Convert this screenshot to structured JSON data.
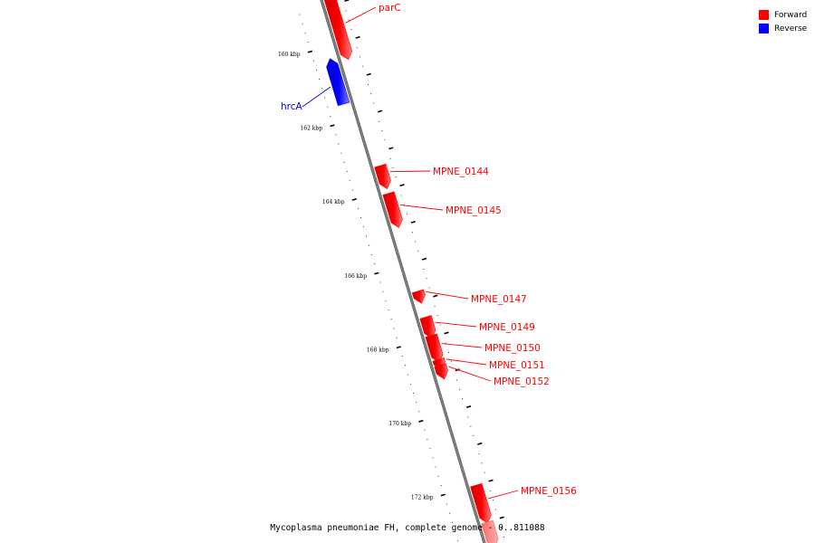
{
  "legend": {
    "forward_label": "Forward",
    "reverse_label": "Reverse",
    "forward_color": "#ff0000",
    "reverse_color": "#0000ff"
  },
  "caption": "Mycoplasma pneumoniae FH, complete genome - 0..811088",
  "map": {
    "backbone_color": "#808080",
    "range_kbp": [
      158.8,
      173.5
    ],
    "ticks": [
      {
        "kbp": 160,
        "label": "160 kbp"
      },
      {
        "kbp": 162,
        "label": "162 kbp"
      },
      {
        "kbp": 164,
        "label": "164 kbp"
      },
      {
        "kbp": 166,
        "label": "166 kbp"
      },
      {
        "kbp": 168,
        "label": "168 kbp"
      },
      {
        "kbp": 170,
        "label": "170 kbp"
      },
      {
        "kbp": 172,
        "label": "172 kbp"
      }
    ],
    "genes": [
      {
        "name": "parC",
        "strand": "forward",
        "start_kbp": 158.8,
        "end_kbp": 160.3
      },
      {
        "name": "hrcA",
        "strand": "reverse",
        "start_kbp": 160.5,
        "end_kbp": 161.55
      },
      {
        "name": "MPNE_0144",
        "strand": "forward",
        "start_kbp": 163.35,
        "end_kbp": 163.8
      },
      {
        "name": "MPNE_0145",
        "strand": "forward",
        "start_kbp": 164.1,
        "end_kbp": 164.85
      },
      {
        "name": "MPNE_0147",
        "strand": "forward",
        "start_kbp": 166.75,
        "end_kbp": 166.9
      },
      {
        "name": "MPNE_0149",
        "strand": "forward",
        "start_kbp": 167.45,
        "end_kbp": 167.85
      },
      {
        "name": "MPNE_0150",
        "strand": "forward",
        "start_kbp": 167.95,
        "end_kbp": 168.5
      },
      {
        "name": "MPNE_0151",
        "strand": "forward",
        "start_kbp": 168.6,
        "end_kbp": 168.7
      },
      {
        "name": "MPNE_0152",
        "strand": "forward",
        "start_kbp": 168.75,
        "end_kbp": 168.95
      },
      {
        "name": "MPNE_0156",
        "strand": "forward",
        "start_kbp": 172.0,
        "end_kbp": 172.85
      },
      {
        "name": "",
        "strand": "forward-faded",
        "start_kbp": 173.0,
        "end_kbp": 173.5
      }
    ]
  }
}
